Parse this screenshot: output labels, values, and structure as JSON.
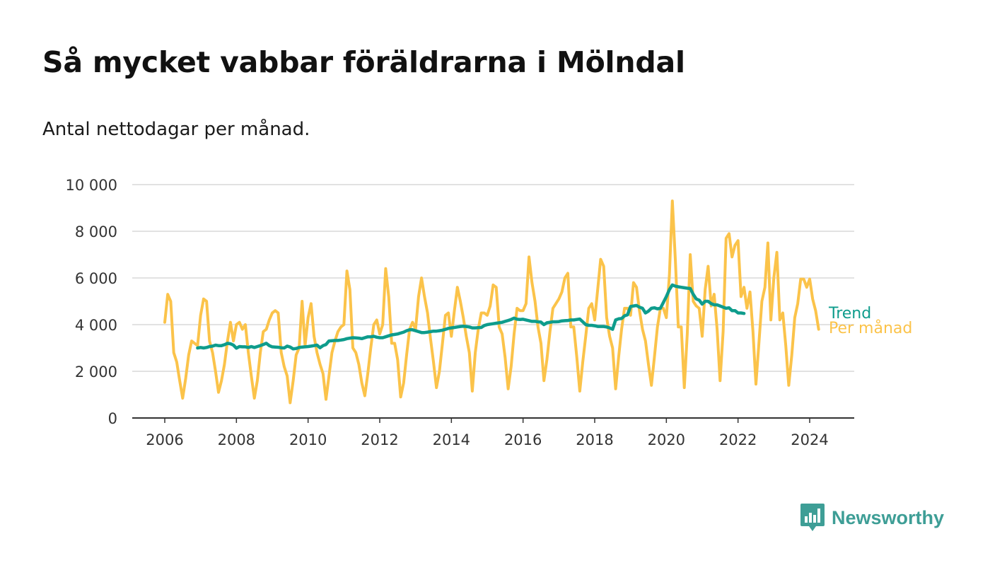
{
  "title": "Så mycket vabbar föräldrarna i Mölndal",
  "subtitle": "Antal nettodagar per månad.",
  "logo_text": "Newsworthy",
  "colors": {
    "trend": "#0e9c8c",
    "monthly": "#fbc34a",
    "grid": "#d9d9d9",
    "axis": "#333333",
    "logo": "#3e9e96"
  },
  "chart_data": {
    "type": "line",
    "x_start": "2006-01",
    "x_ticks": [
      "2006",
      "2008",
      "2010",
      "2012",
      "2014",
      "2016",
      "2018",
      "2020",
      "2022",
      "2024"
    ],
    "y_ticks": [
      "0",
      "2 000",
      "4 000",
      "6 000",
      "8 000",
      "10 000"
    ],
    "y_tick_values": [
      0,
      2000,
      4000,
      6000,
      8000,
      10000
    ],
    "ylim": [
      0,
      10000
    ],
    "grid": true,
    "legend": "right-end labels",
    "series": [
      {
        "name": "Per månad",
        "key": "monthly",
        "start": "2006-01",
        "values": [
          4100,
          5300,
          5000,
          2800,
          2400,
          1600,
          850,
          1700,
          2700,
          3300,
          3200,
          3100,
          4400,
          5100,
          5000,
          3300,
          2800,
          2000,
          1100,
          1600,
          2300,
          3300,
          4100,
          3300,
          4000,
          4100,
          3800,
          4000,
          2800,
          1800,
          850,
          1600,
          2800,
          3700,
          3800,
          4200,
          4500,
          4600,
          4500,
          2800,
          2200,
          1800,
          650,
          1600,
          2700,
          3000,
          5000,
          3100,
          4300,
          4900,
          3500,
          2800,
          2300,
          1900,
          800,
          1800,
          2800,
          3300,
          3700,
          3900,
          4000,
          6300,
          5500,
          3000,
          2800,
          2300,
          1500,
          950,
          1900,
          3000,
          4000,
          4200,
          3600,
          4000,
          6400,
          5200,
          3200,
          3200,
          2500,
          900,
          1500,
          2700,
          3800,
          4100,
          3800,
          5200,
          6000,
          5200,
          4500,
          3400,
          2400,
          1300,
          2000,
          3200,
          4400,
          4500,
          3500,
          4600,
          5600,
          5000,
          4300,
          3500,
          2800,
          1150,
          2800,
          3800,
          4500,
          4500,
          4400,
          4800,
          5700,
          5600,
          3900,
          3600,
          2600,
          1250,
          2200,
          3600,
          4700,
          4600,
          4600,
          4900,
          6900,
          5800,
          5000,
          3900,
          3200,
          1600,
          2500,
          3700,
          4700,
          4900,
          5100,
          5400,
          6000,
          6200,
          3900,
          3900,
          2600,
          1150,
          2400,
          3500,
          4700,
          4900,
          4200,
          5500,
          6800,
          6500,
          4300,
          3500,
          3000,
          1250,
          2600,
          3800,
          4700,
          4700,
          4400,
          5800,
          5600,
          4600,
          3800,
          3300,
          2300,
          1400,
          2600,
          3900,
          4700,
          4700,
          4300,
          6100,
          9300,
          6800,
          3900,
          3900,
          1300,
          3600,
          7000,
          5000,
          4800,
          4700,
          3500,
          5500,
          6500,
          4800,
          5300,
          3800,
          1600,
          3700,
          7700,
          7900,
          6900,
          7400,
          7600,
          5200,
          5600,
          4700,
          5400,
          3700,
          1450,
          3200,
          5000,
          5600,
          7500,
          4200,
          6000,
          7100,
          4200,
          4500,
          3100,
          1400,
          2700,
          4300,
          4900,
          5950,
          5950,
          5600,
          5950,
          5100,
          4600,
          3800
        ],
        "label": "Per månad"
      },
      {
        "name": "Trend",
        "key": "trend",
        "start": "2006-12",
        "values": [
          3000,
          3020,
          3000,
          3020,
          3060,
          3080,
          3120,
          3100,
          3100,
          3140,
          3200,
          3180,
          3120,
          2990,
          3060,
          3050,
          3050,
          3020,
          3060,
          3020,
          3060,
          3100,
          3150,
          3200,
          3100,
          3050,
          3040,
          3030,
          3010,
          3000,
          3080,
          3040,
          2960,
          2980,
          3020,
          3040,
          3050,
          3060,
          3080,
          3100,
          3120,
          3010,
          3100,
          3150,
          3300,
          3310,
          3320,
          3320,
          3340,
          3360,
          3400,
          3420,
          3440,
          3430,
          3420,
          3400,
          3440,
          3480,
          3480,
          3500,
          3460,
          3440,
          3440,
          3480,
          3520,
          3560,
          3580,
          3600,
          3640,
          3680,
          3740,
          3780,
          3780,
          3740,
          3700,
          3660,
          3660,
          3680,
          3700,
          3720,
          3720,
          3740,
          3760,
          3800,
          3840,
          3860,
          3880,
          3900,
          3920,
          3930,
          3920,
          3900,
          3860,
          3860,
          3870,
          3880,
          3960,
          4000,
          4020,
          4040,
          4060,
          4080,
          4100,
          4140,
          4180,
          4220,
          4280,
          4230,
          4220,
          4230,
          4200,
          4170,
          4140,
          4140,
          4120,
          4110,
          4000,
          4080,
          4100,
          4120,
          4120,
          4130,
          4160,
          4170,
          4180,
          4200,
          4200,
          4220,
          4240,
          4120,
          4000,
          3970,
          3970,
          3950,
          3920,
          3920,
          3920,
          3900,
          3860,
          3800,
          4200,
          4250,
          4260,
          4380,
          4420,
          4780,
          4800,
          4820,
          4750,
          4700,
          4500,
          4580,
          4700,
          4720,
          4680,
          4700,
          4950,
          5200,
          5500,
          5700,
          5650,
          5620,
          5600,
          5580,
          5560,
          5550,
          5300,
          5100,
          5050,
          4880,
          5000,
          5000,
          4900,
          4850,
          4850,
          4800,
          4750,
          4700,
          4720,
          4600,
          4600,
          4500,
          4500,
          4480
        ],
        "label": "Trend"
      }
    ]
  }
}
